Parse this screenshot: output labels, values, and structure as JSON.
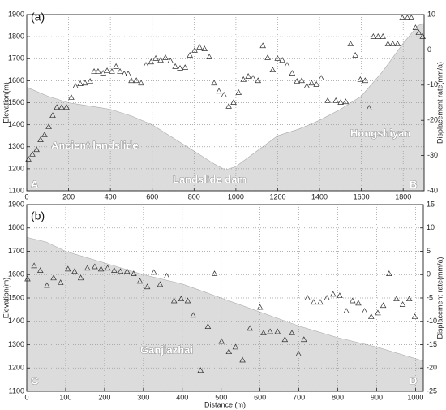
{
  "chart_data": [
    {
      "type": "combo",
      "ylabel": "Elevation(m)",
      "y2label": "Displacement rate(mm/a)",
      "xlim": [
        0,
        1900
      ],
      "xticks": [
        0,
        200,
        400,
        600,
        800,
        1000,
        1200,
        1400,
        1600,
        1800
      ],
      "ylim": [
        1100,
        1900
      ],
      "yticks": [
        1100,
        1200,
        1300,
        1400,
        1500,
        1600,
        1700,
        1800,
        1900
      ],
      "y2lim": [
        -40,
        10
      ],
      "y2ticks": [
        -40,
        -30,
        -20,
        -10,
        0,
        10
      ],
      "grid": true,
      "annotations": [
        "(a)",
        "Ancient landslide",
        "Landslide dam",
        "Hongshiyan",
        "A",
        "B"
      ],
      "series": [
        {
          "kind": "area",
          "color": "#dcdcdc",
          "x": [
            0,
            100,
            200,
            300,
            400,
            500,
            600,
            700,
            800,
            900,
            950,
            1000,
            1100,
            1200,
            1300,
            1400,
            1500,
            1600,
            1700,
            1800,
            1870,
            1900
          ],
          "values": [
            1570,
            1530,
            1500,
            1485,
            1470,
            1440,
            1400,
            1340,
            1280,
            1220,
            1195,
            1210,
            1280,
            1350,
            1380,
            1420,
            1470,
            1530,
            1640,
            1770,
            1850,
            1860
          ]
        },
        {
          "kind": "scatter",
          "axis": "y2",
          "color": "#333",
          "x": [
            8,
            27,
            47,
            66,
            85,
            105,
            124,
            144,
            167,
            190,
            213,
            233,
            256,
            279,
            303,
            322,
            341,
            365,
            384,
            407,
            427,
            446,
            466,
            485,
            500,
            524,
            547,
            570,
            594,
            617,
            640,
            663,
            687,
            710,
            733,
            757,
            780,
            803,
            826,
            850,
            873,
            896,
            919,
            943,
            966,
            989,
            1013,
            1036,
            1059,
            1082,
            1106,
            1129,
            1152,
            1176,
            1199,
            1222,
            1245,
            1269,
            1292,
            1315,
            1339,
            1362,
            1385,
            1408,
            1439,
            1478,
            1501,
            1525,
            1548,
            1571,
            1595,
            1618,
            1637,
            1657,
            1680,
            1703,
            1727,
            1750,
            1773,
            1796,
            1820,
            1839,
            1859,
            1874,
            1893
          ],
          "values": [
            -31.0,
            -29.6,
            -28.3,
            -25.5,
            -24.1,
            -21.8,
            -18.6,
            -16.3,
            -16.3,
            -16.3,
            -13.5,
            -10.3,
            -9.6,
            -9.4,
            -8.9,
            -6.1,
            -6.1,
            -6.6,
            -5.9,
            -6.1,
            -4.7,
            -6.1,
            -6.8,
            -6.8,
            -8.7,
            -8.7,
            -9.4,
            -4.3,
            -3.4,
            -2.4,
            -2.9,
            -2.2,
            -3.1,
            -4.7,
            -5.2,
            -5.0,
            -1.5,
            -0.1,
            0.8,
            0.3,
            -2.0,
            -9.4,
            -11.7,
            -12.8,
            -16.0,
            -14.9,
            -12.1,
            -8.4,
            -7.5,
            -8.0,
            -8.7,
            1.2,
            -2.2,
            -5.7,
            -2.4,
            -2.9,
            -4.3,
            -6.6,
            -8.9,
            -8.7,
            -10.3,
            -9.4,
            -9.8,
            -8.0,
            -14.4,
            -14.4,
            -14.9,
            -14.7,
            1.7,
            -1.5,
            -8.4,
            -8.7,
            -16.5,
            3.8,
            3.8,
            3.8,
            1.7,
            1.7,
            1.7,
            9.1,
            9.1,
            9.1,
            6.3,
            4.9,
            3.8
          ]
        }
      ]
    },
    {
      "type": "combo",
      "ylabel": "Elevation(m)",
      "y2label": "Displacement rate(mm/a)",
      "xlabel": "Distance (m)",
      "xlim": [
        0,
        1020
      ],
      "xticks": [
        0,
        100,
        200,
        300,
        400,
        500,
        600,
        700,
        800,
        900,
        1000
      ],
      "ylim": [
        1100,
        1900
      ],
      "yticks": [
        1100,
        1200,
        1300,
        1400,
        1500,
        1600,
        1700,
        1800,
        1900
      ],
      "y2lim": [
        -25,
        15
      ],
      "y2ticks": [
        -25,
        -20,
        -15,
        -10,
        -5,
        0,
        5,
        10,
        15
      ],
      "grid": true,
      "annotations": [
        "(b)",
        "Ganjiazhai",
        "C",
        "D"
      ],
      "series": [
        {
          "kind": "area",
          "color": "#dcdcdc",
          "x": [
            0,
            50,
            100,
            200,
            300,
            400,
            500,
            600,
            700,
            800,
            900,
            1000,
            1020
          ],
          "values": [
            1760,
            1740,
            1700,
            1650,
            1600,
            1560,
            1500,
            1440,
            1380,
            1330,
            1290,
            1240,
            1230
          ]
        },
        {
          "kind": "scatter",
          "axis": "y2",
          "color": "#333",
          "x": [
            2,
            19,
            35,
            52,
            69,
            87,
            106,
            123,
            139,
            156,
            175,
            191,
            208,
            225,
            241,
            258,
            275,
            291,
            310,
            327,
            343,
            360,
            379,
            397,
            414,
            428,
            447,
            466,
            483,
            501,
            520,
            537,
            555,
            574,
            600,
            609,
            626,
            645,
            664,
            682,
            699,
            713,
            722,
            738,
            755,
            772,
            788,
            805,
            822,
            838,
            853,
            869,
            886,
            903,
            917,
            932,
            951,
            967,
            984,
            998
          ],
          "values": [
            -0.9,
            1.9,
            0.9,
            -2.3,
            -0.7,
            -1.7,
            1.2,
            0.7,
            -0.7,
            1.4,
            1.7,
            1.2,
            1.4,
            0.9,
            0.7,
            0.7,
            0.2,
            -1.4,
            -2.6,
            0.5,
            -2.1,
            -0.3,
            -5.6,
            -5.2,
            -5.6,
            -8.7,
            -20.5,
            -11.1,
            0.2,
            -14.3,
            -16.5,
            -15.5,
            -18.3,
            -11.5,
            -7.0,
            -12.5,
            -12.2,
            -12.2,
            -13.9,
            -12.5,
            -17.0,
            -13.9,
            -5.0,
            -5.9,
            -5.9,
            -5.0,
            -4.2,
            -4.5,
            -7.8,
            -5.6,
            -6.1,
            -7.8,
            -9.0,
            -8.2,
            -6.6,
            0.2,
            -5.2,
            -6.4,
            -5.2,
            -9.0
          ]
        }
      ]
    }
  ]
}
